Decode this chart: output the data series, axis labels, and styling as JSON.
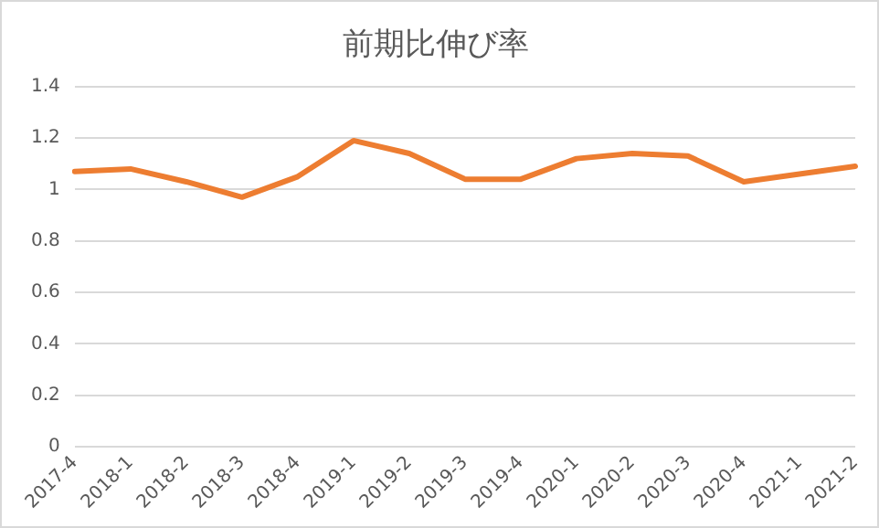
{
  "chart_data": {
    "type": "line",
    "title": "前期比伸び率",
    "categories": [
      "2017-4",
      "2018-1",
      "2018-2",
      "2018-3",
      "2018-4",
      "2019-1",
      "2019-2",
      "2019-3",
      "2019-4",
      "2020-1",
      "2020-2",
      "2020-3",
      "2020-4",
      "2021-1",
      "2021-2"
    ],
    "series": [
      {
        "color": "#ed7d31",
        "values": [
          1.07,
          1.08,
          1.03,
          0.97,
          1.05,
          1.19,
          1.14,
          1.04,
          1.04,
          1.12,
          1.14,
          1.13,
          1.03,
          1.06,
          1.09
        ]
      }
    ],
    "ylim": [
      0,
      1.4
    ],
    "yticks": [
      0,
      0.2,
      0.4,
      0.6,
      0.8,
      1,
      1.2,
      1.4
    ],
    "grid": "y",
    "legend": false,
    "marker": "none",
    "line_style": "solid"
  }
}
